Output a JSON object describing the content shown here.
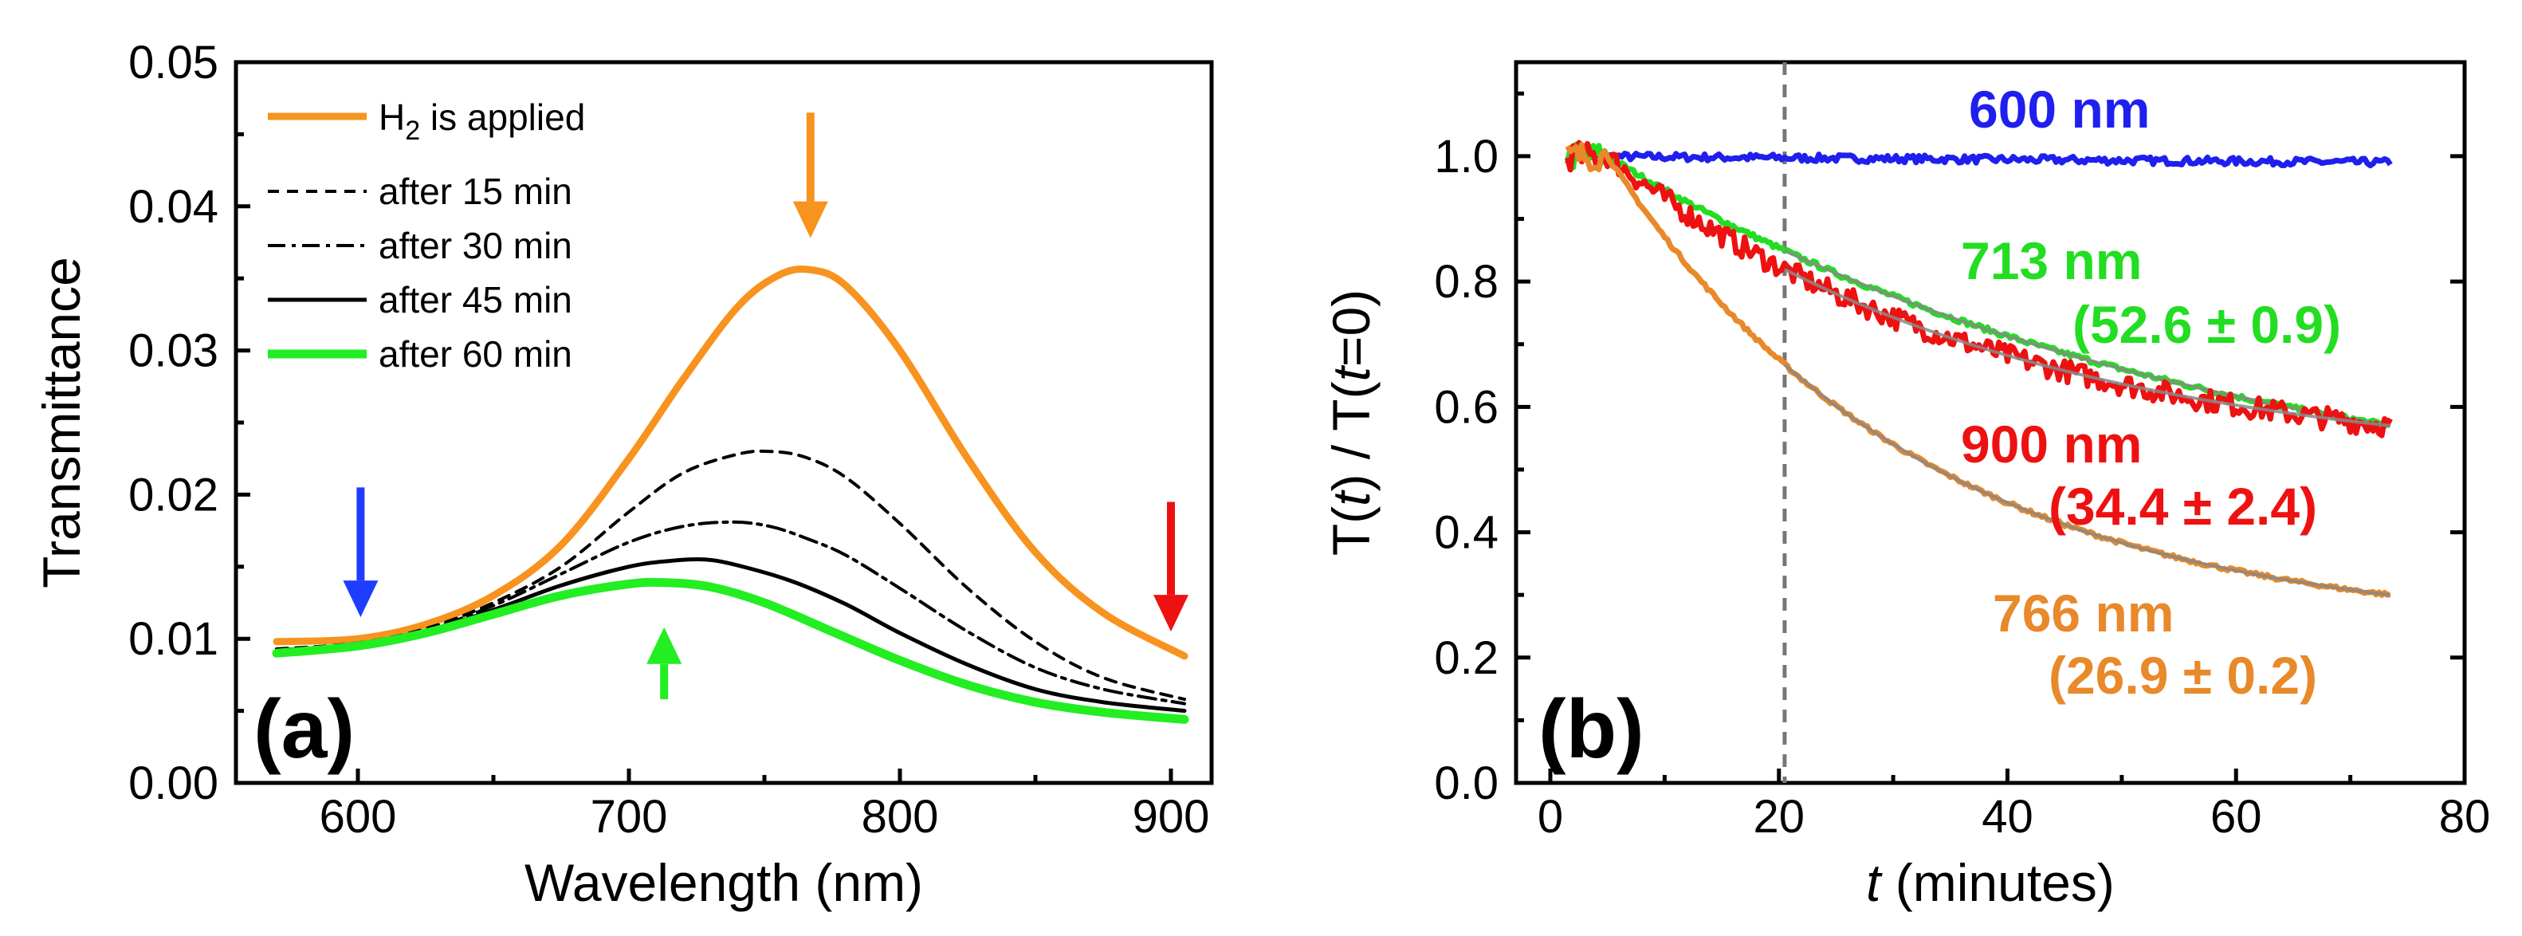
{
  "figure": {
    "panels": [
      "(a)",
      "(b)"
    ]
  },
  "chart_data": [
    {
      "type": "line",
      "panel_label": "(a)",
      "xlabel": "Wavelength  (nm)",
      "ylabel": "Transmittance",
      "xlim": [
        555,
        915
      ],
      "ylim": [
        0.0,
        0.05
      ],
      "xticks": [
        "600",
        "700",
        "800",
        "900"
      ],
      "yticks": [
        "0.00",
        "0.01",
        "0.02",
        "0.03",
        "0.04",
        "0.05"
      ],
      "legend_position": "top-left",
      "legend": {
        "h2_prefix": "H",
        "h2_sub": "2",
        "h2_suffix": " is applied",
        "after15": "after 15 min",
        "after30": "after 30 min",
        "after45": "after 45 min",
        "after60": "after 60 min"
      },
      "series": [
        {
          "name": "H2 is applied",
          "color": "#F7931E",
          "style": "solid",
          "x": [
            570,
            600,
            625,
            650,
            675,
            700,
            720,
            740,
            755,
            767,
            780,
            800,
            825,
            850,
            875,
            905
          ],
          "y": [
            0.0098,
            0.01,
            0.011,
            0.013,
            0.0165,
            0.0225,
            0.028,
            0.033,
            0.0352,
            0.0356,
            0.0345,
            0.03,
            0.0225,
            0.016,
            0.0118,
            0.0088
          ]
        },
        {
          "name": "after 15 min",
          "color": "#000000",
          "style": "dash",
          "x": [
            570,
            600,
            625,
            650,
            675,
            700,
            720,
            740,
            752,
            765,
            780,
            800,
            825,
            850,
            875,
            905
          ],
          "y": [
            0.0093,
            0.0097,
            0.0107,
            0.0125,
            0.015,
            0.0188,
            0.0215,
            0.0228,
            0.023,
            0.0226,
            0.0212,
            0.018,
            0.0135,
            0.0098,
            0.0073,
            0.0058
          ]
        },
        {
          "name": "after 30 min",
          "color": "#000000",
          "style": "dashdot",
          "x": [
            570,
            600,
            625,
            650,
            675,
            700,
            720,
            738,
            752,
            765,
            780,
            800,
            825,
            850,
            875,
            905
          ],
          "y": [
            0.0092,
            0.0096,
            0.0106,
            0.0123,
            0.0145,
            0.0167,
            0.0178,
            0.0181,
            0.0178,
            0.017,
            0.0158,
            0.0135,
            0.0105,
            0.008,
            0.0065,
            0.0055
          ]
        },
        {
          "name": "after 45 min",
          "color": "#000000",
          "style": "solid",
          "x": [
            570,
            600,
            625,
            650,
            675,
            700,
            715,
            728,
            740,
            760,
            780,
            800,
            825,
            850,
            875,
            905
          ],
          "y": [
            0.0092,
            0.0096,
            0.0105,
            0.012,
            0.0137,
            0.015,
            0.0154,
            0.0155,
            0.0151,
            0.014,
            0.0124,
            0.0104,
            0.0082,
            0.0065,
            0.0056,
            0.005
          ]
        },
        {
          "name": "after 60 min",
          "color": "#22EE22",
          "style": "solid",
          "x": [
            570,
            600,
            625,
            650,
            675,
            700,
            713,
            730,
            750,
            775,
            800,
            825,
            850,
            875,
            905
          ],
          "y": [
            0.009,
            0.0095,
            0.0104,
            0.0117,
            0.013,
            0.0138,
            0.0139,
            0.0136,
            0.0125,
            0.0105,
            0.0085,
            0.0068,
            0.0056,
            0.0049,
            0.0044
          ]
        }
      ],
      "arrows": [
        {
          "color": "#1F3DFF",
          "x": 601,
          "y_from": 0.0205,
          "y_to": 0.0115,
          "direction": "down"
        },
        {
          "color": "#F7931E",
          "x": 767,
          "y_from": 0.0465,
          "y_to": 0.0378,
          "direction": "down"
        },
        {
          "color": "#EE1111",
          "x": 900,
          "y_from": 0.0195,
          "y_to": 0.0105,
          "direction": "down"
        },
        {
          "color": "#22EE22",
          "x": 713,
          "y_from": 0.0058,
          "y_to": 0.0108,
          "direction": "up"
        }
      ]
    },
    {
      "type": "line",
      "panel_label": "(b)",
      "xlabel_italic": "t",
      "xlabel_rest": " (minutes)",
      "ylabel_parts": [
        "T(",
        "t",
        ") / T(",
        "t",
        "=0)"
      ],
      "xlim": [
        -3,
        80
      ],
      "ylim": [
        0.0,
        1.15
      ],
      "xticks": [
        "0",
        "20",
        "40",
        "60",
        "80"
      ],
      "yticks": [
        "0.0",
        "0.2",
        "0.4",
        "0.6",
        "0.8",
        "1.0"
      ],
      "dashed_vertical_line_x": 20.5,
      "annotations": {
        "a600": "600 nm",
        "a713": "713 nm",
        "a713b": "(52.6 ± 0.9)",
        "a900": "900 nm",
        "a900b": "(34.4 ± 2.4)",
        "a766": "766 nm",
        "a766b": "(26.9 ± 0.2)"
      },
      "series": [
        {
          "name": "600 nm",
          "color": "#1F1FEE",
          "tau": null,
          "x": [
            1.5,
            73.5
          ],
          "y": [
            1.0,
            0.99
          ],
          "noise": 0.006
        },
        {
          "name": "713 nm",
          "color": "#22DD22",
          "tau": 52.6,
          "x": [
            5,
            73.5
          ],
          "y_start": 1.0,
          "y_end": 0.57,
          "noise": 0.004
        },
        {
          "name": "900 nm",
          "color": "#EE1111",
          "tau": 34.4,
          "x": [
            5,
            73.5
          ],
          "y_start": 1.0,
          "y_end": 0.57,
          "noise": 0.018
        },
        {
          "name": "766 nm",
          "color": "#E8892A",
          "tau": 26.9,
          "x": [
            5,
            73.5
          ],
          "y_start": 1.0,
          "y_end": 0.3,
          "noise": 0.003
        }
      ]
    }
  ]
}
